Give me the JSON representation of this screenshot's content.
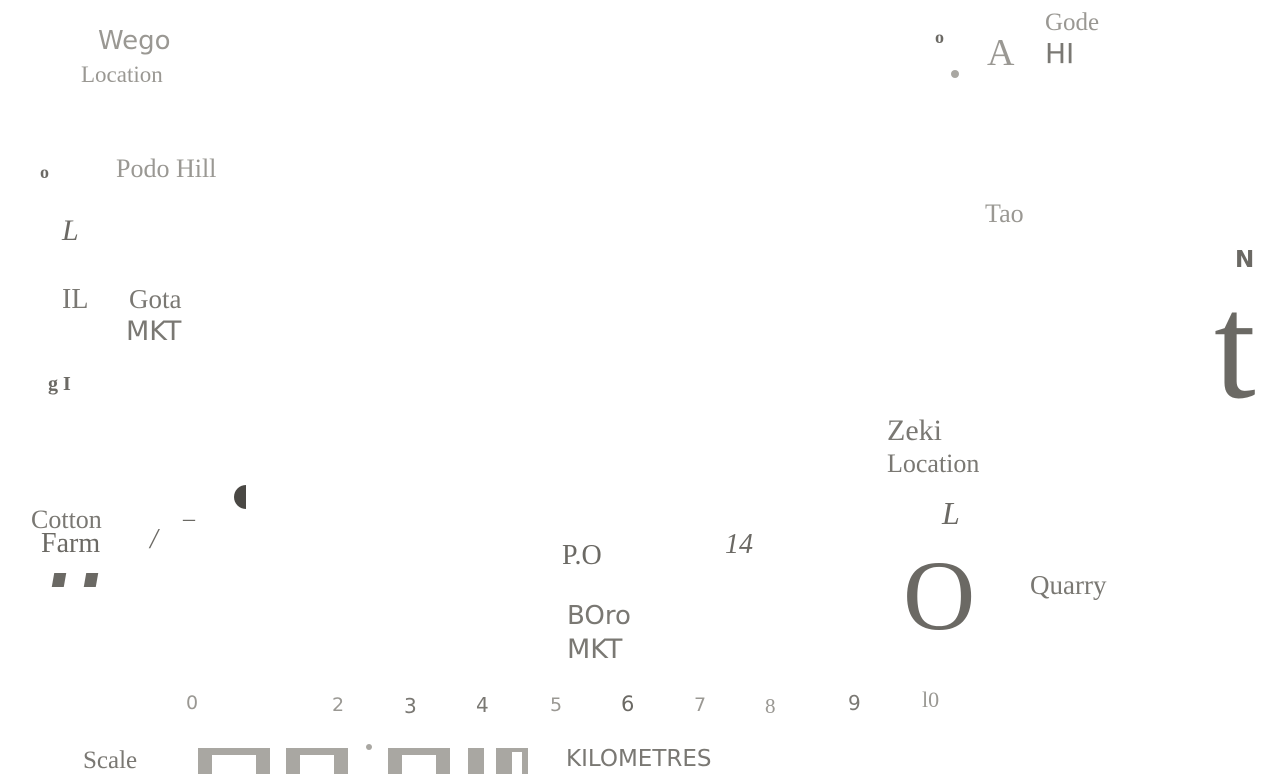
{
  "places": {
    "wego": "Wego",
    "wego_location": "Location",
    "podo_hill": "Podo Hill",
    "gota": "Gota",
    "gota_mkt": "MKT",
    "gode": "Gode",
    "gode_hi": "HI",
    "tao": "Tao",
    "zeki": "Zeki",
    "zeki_location": "Location",
    "cotton": "Cotton",
    "farm": "Farm",
    "po": "P.O",
    "boro": "BOro",
    "boro_mkt": "MKT",
    "quarry": "Quarry"
  },
  "fragments": {
    "o_left": "o",
    "l_mark_1": "L",
    "il": "IL",
    "g_i": "g I",
    "o_top": "o",
    "a_top": "A",
    "slash": "/",
    "dash": "–",
    "l_mark_2": "L",
    "road_14": "14",
    "big_o": "O",
    "quote_mark": "\""
  },
  "north": {
    "label": "N",
    "arrow_glyph": "t"
  },
  "scale": {
    "label": "Scale",
    "unit": "KILOMETRES",
    "ticks": [
      "0",
      "2",
      "3",
      "4",
      "5",
      "6",
      "7",
      "8",
      "9",
      "l0"
    ]
  }
}
